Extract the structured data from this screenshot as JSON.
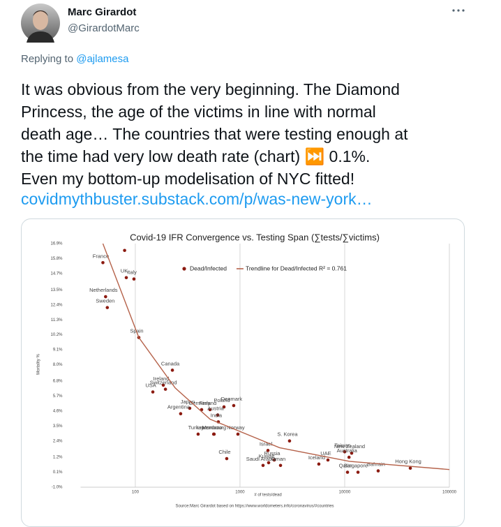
{
  "tweet": {
    "author": {
      "name": "Marc Girardot",
      "handle": "@GirardotMarc"
    },
    "reply": {
      "prefix": "Replying to",
      "to": "@ajlamesa"
    },
    "text": [
      "It was obvious from the very beginning. The Diamond",
      "Princess, the age of the victims in line with normal",
      "death age… The countries that were testing enough at",
      "the time had very low death rate (chart) ⏭️ 0.1%.",
      "Even my bottom-up modelisation of NYC fitted!"
    ],
    "link": "covidmythbuster.substack.com/p/was-new-york…"
  },
  "chart_data": {
    "type": "scatter",
    "title": "Covid-19 IFR Convergence vs. Testing Span (∑tests/∑victims)",
    "x_label": "# of tests/dead",
    "y_label": "Mortality %",
    "source": "Source:Marc Girardot based on https://www.worldometers.info/coronavirus/#countries",
    "xscale": "log",
    "xlim": [
      30,
      100000
    ],
    "xticks": [
      100,
      1000,
      10000,
      100000
    ],
    "ylim": [
      -1.0,
      16.9
    ],
    "yticks": [
      {
        "value": -1.0,
        "label": "-1.0%"
      },
      {
        "value": 0.1,
        "label": "0.1%"
      },
      {
        "value": 1.2,
        "label": "1.2%"
      },
      {
        "value": 2.4,
        "label": "2.4%"
      },
      {
        "value": 3.5,
        "label": "3.5%"
      },
      {
        "value": 4.6,
        "label": "4.6%"
      },
      {
        "value": 5.7,
        "label": "5.7%"
      },
      {
        "value": 6.8,
        "label": "6.8%"
      },
      {
        "value": 8.0,
        "label": "8.0%"
      },
      {
        "value": 9.1,
        "label": "9.1%"
      },
      {
        "value": 10.2,
        "label": "10.2%"
      },
      {
        "value": 11.3,
        "label": "11.3%"
      },
      {
        "value": 12.4,
        "label": "12.4%"
      },
      {
        "value": 13.5,
        "label": "13.5%"
      },
      {
        "value": 14.7,
        "label": "14.7%"
      },
      {
        "value": 15.8,
        "label": "15.8%"
      },
      {
        "value": 16.9,
        "label": "16.9%"
      }
    ],
    "grid": "x",
    "series": [
      {
        "name": "Dead/Infected",
        "type": "scatter",
        "color": "#8b1a10",
        "labels": [
          "France",
          null,
          "UK",
          "Italy",
          "Netherlands",
          "Sweden",
          "Spain",
          "Canada",
          "Ireland",
          "Switzerland",
          "USA",
          "Japan",
          "Germany",
          "Finland",
          "Denmark",
          "Poland",
          "Argentina",
          "Austria",
          "India",
          "Turkey",
          "Morocco",
          "Norway",
          "Luxembourg",
          "S. Korea",
          "Israel",
          "Russia",
          "Chile",
          "Kuwait",
          "Saudi Arabia",
          "Oman",
          "Iceland",
          "UAE",
          "Taiwan",
          "New Zealand",
          "Australia",
          "Bahrain",
          "Hong Kong",
          "Qatar",
          "Singapore"
        ],
        "x": [
          49,
          79,
          82,
          97,
          52,
          54,
          108,
          226,
          185,
          194,
          147,
          331,
          430,
          517,
          871,
          703,
          271,
          612,
          621,
          398,
          566,
          955,
          560,
          2972,
          1849,
          2123,
          747,
          1877,
          1660,
          2438,
          5662,
          6918,
          10000,
          11659,
          11000,
          20893,
          42364,
          10641,
          13397
        ],
        "values": [
          15.5,
          16.4,
          14.4,
          14.3,
          13.0,
          12.2,
          10.0,
          7.6,
          6.5,
          6.2,
          6.0,
          4.8,
          4.7,
          4.7,
          5.0,
          4.9,
          4.4,
          4.3,
          3.8,
          2.9,
          2.9,
          2.9,
          2.9,
          2.4,
          1.7,
          1.0,
          1.1,
          0.8,
          0.6,
          0.6,
          0.7,
          1.0,
          1.6,
          1.5,
          1.2,
          0.2,
          0.4,
          0.1,
          0.1
        ]
      },
      {
        "name": "Trendline for Dead/Infected R² = 0.761",
        "type": "line",
        "color": "#b5624a",
        "x": [
          49,
          108,
          240,
          517,
          2390,
          11100,
          100000
        ],
        "values": [
          16.9,
          10.0,
          6.3,
          4.0,
          1.9,
          0.9,
          0.3
        ]
      }
    ]
  }
}
